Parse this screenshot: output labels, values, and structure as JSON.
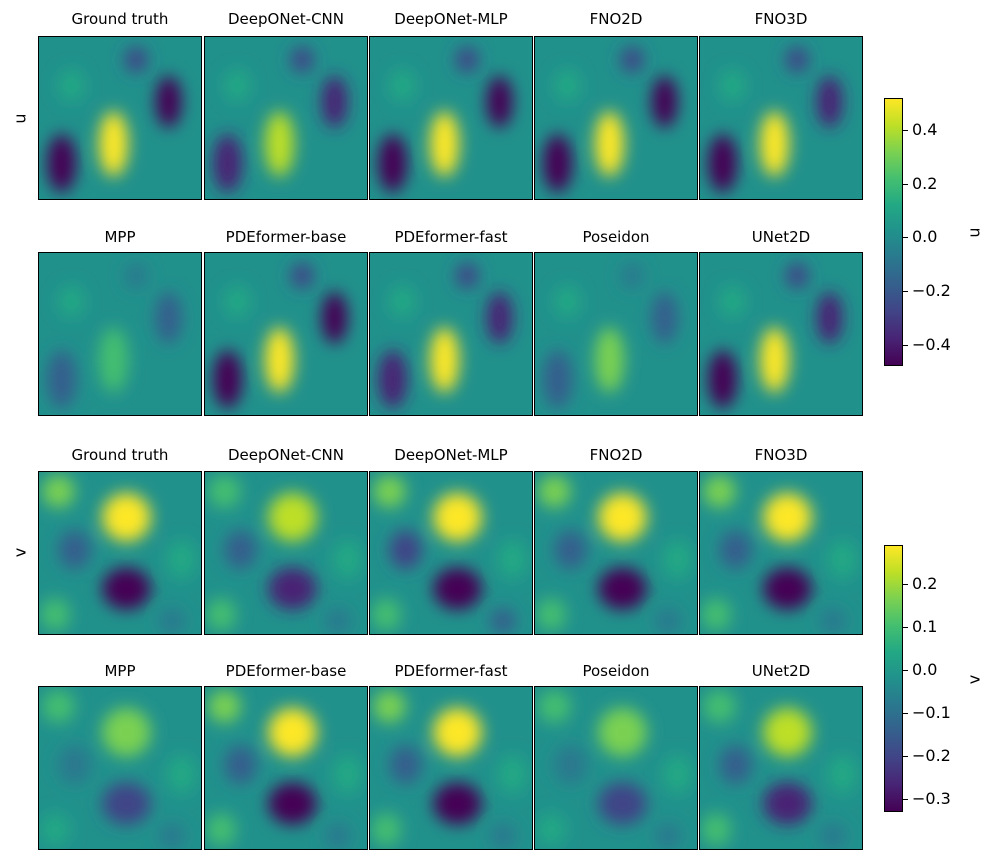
{
  "chart_data": [
    {
      "type": "heatmap",
      "field": "u",
      "row_label": "u",
      "colorbar_label": "u",
      "colorbar": {
        "min": -0.48,
        "max": 0.52,
        "colormap": "viridis",
        "ticks": [
          0.4,
          0.2,
          0.0,
          -0.2,
          -0.4
        ],
        "tick_labels": [
          "0.4",
          "0.2",
          "0.0",
          "−0.2",
          "−0.4"
        ]
      },
      "panels": [
        {
          "title": "Ground truth",
          "amplitude": 1.0
        },
        {
          "title": "DeepONet-CNN",
          "amplitude": 0.85
        },
        {
          "title": "DeepONet-MLP",
          "amplitude": 1.1
        },
        {
          "title": "FNO2D",
          "amplitude": 1.0
        },
        {
          "title": "FNO3D",
          "amplitude": 0.95
        },
        {
          "title": "MPP",
          "amplitude": 0.45
        },
        {
          "title": "PDEformer-base",
          "amplitude": 1.0
        },
        {
          "title": "PDEformer-fast",
          "amplitude": 0.9
        },
        {
          "title": "Poseidon",
          "amplitude": 0.5
        },
        {
          "title": "UNet2D",
          "amplitude": 0.95
        }
      ]
    },
    {
      "type": "heatmap",
      "field": "v",
      "row_label": "v",
      "colorbar_label": "v",
      "colorbar": {
        "min": -0.33,
        "max": 0.29,
        "colormap": "viridis",
        "ticks": [
          0.2,
          0.1,
          0.0,
          -0.1,
          -0.2,
          -0.3
        ],
        "tick_labels": [
          "0.2",
          "0.1",
          "0.0",
          "−0.1",
          "−0.2",
          "−0.3"
        ]
      },
      "panels": [
        {
          "title": "Ground truth",
          "amplitude": 1.0
        },
        {
          "title": "DeepONet-CNN",
          "amplitude": 0.8
        },
        {
          "title": "DeepONet-MLP",
          "amplitude": 1.1
        },
        {
          "title": "FNO2D",
          "amplitude": 0.95
        },
        {
          "title": "FNO3D",
          "amplitude": 0.95
        },
        {
          "title": "MPP",
          "amplitude": 0.6
        },
        {
          "title": "PDEformer-base",
          "amplitude": 1.0
        },
        {
          "title": "PDEformer-fast",
          "amplitude": 1.0
        },
        {
          "title": "Poseidon",
          "amplitude": 0.55
        },
        {
          "title": "UNet2D",
          "amplitude": 0.85
        }
      ]
    }
  ]
}
